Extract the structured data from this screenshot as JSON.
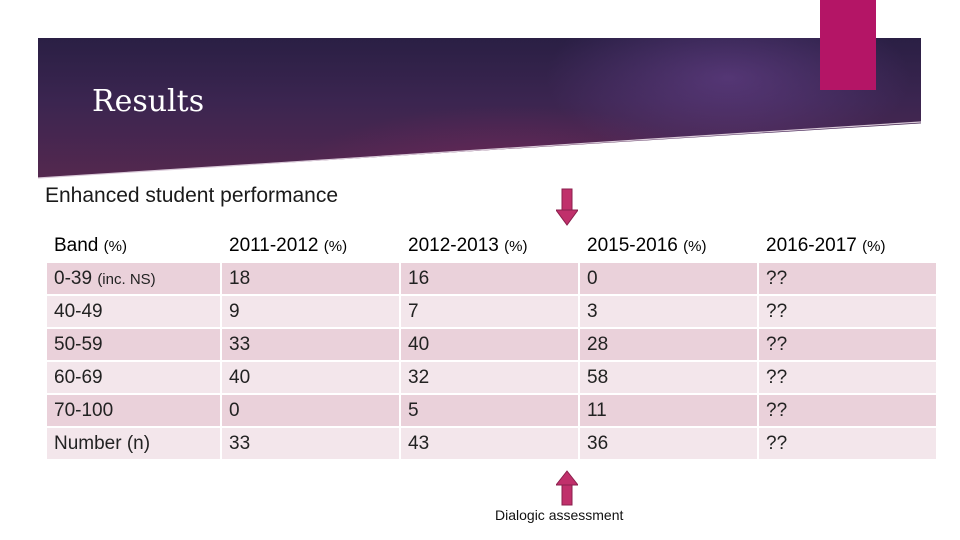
{
  "slide": {
    "title": "Results",
    "subtitle": "Enhanced student performance",
    "caption": "Dialogic assessment"
  },
  "colors": {
    "accent": "#b41566",
    "arrow": "#c0306b",
    "banner_dark": "#2a1f44",
    "row_fill": "#ead1da"
  },
  "table": {
    "headers": [
      {
        "main": "Band ",
        "unit": "(%)"
      },
      {
        "main": "2011-2012 ",
        "unit": "(%)"
      },
      {
        "main": "2012-2013 ",
        "unit": "(%)"
      },
      {
        "main": "2015-2016 ",
        "unit": "(%)"
      },
      {
        "main": "2016-2017 ",
        "unit": "(%)"
      }
    ],
    "rows": [
      {
        "band": "0-39 ",
        "band_note": "(inc. NS)",
        "values": [
          "18",
          "16",
          "0",
          "??"
        ]
      },
      {
        "band": "40-49",
        "band_note": "",
        "values": [
          "9",
          "7",
          "3",
          "??"
        ]
      },
      {
        "band": "50-59",
        "band_note": "",
        "values": [
          "33",
          "40",
          "28",
          "??"
        ]
      },
      {
        "band": "60-69",
        "band_note": "",
        "values": [
          "40",
          "32",
          "58",
          "??"
        ]
      },
      {
        "band": "70-100",
        "band_note": "",
        "values": [
          "0",
          "5",
          "11",
          "??"
        ]
      },
      {
        "band": "Number (n)",
        "band_note": "",
        "values": [
          "33",
          "43",
          "36",
          "??"
        ]
      }
    ]
  },
  "icons": [
    "arrow-down-icon",
    "arrow-up-icon"
  ]
}
